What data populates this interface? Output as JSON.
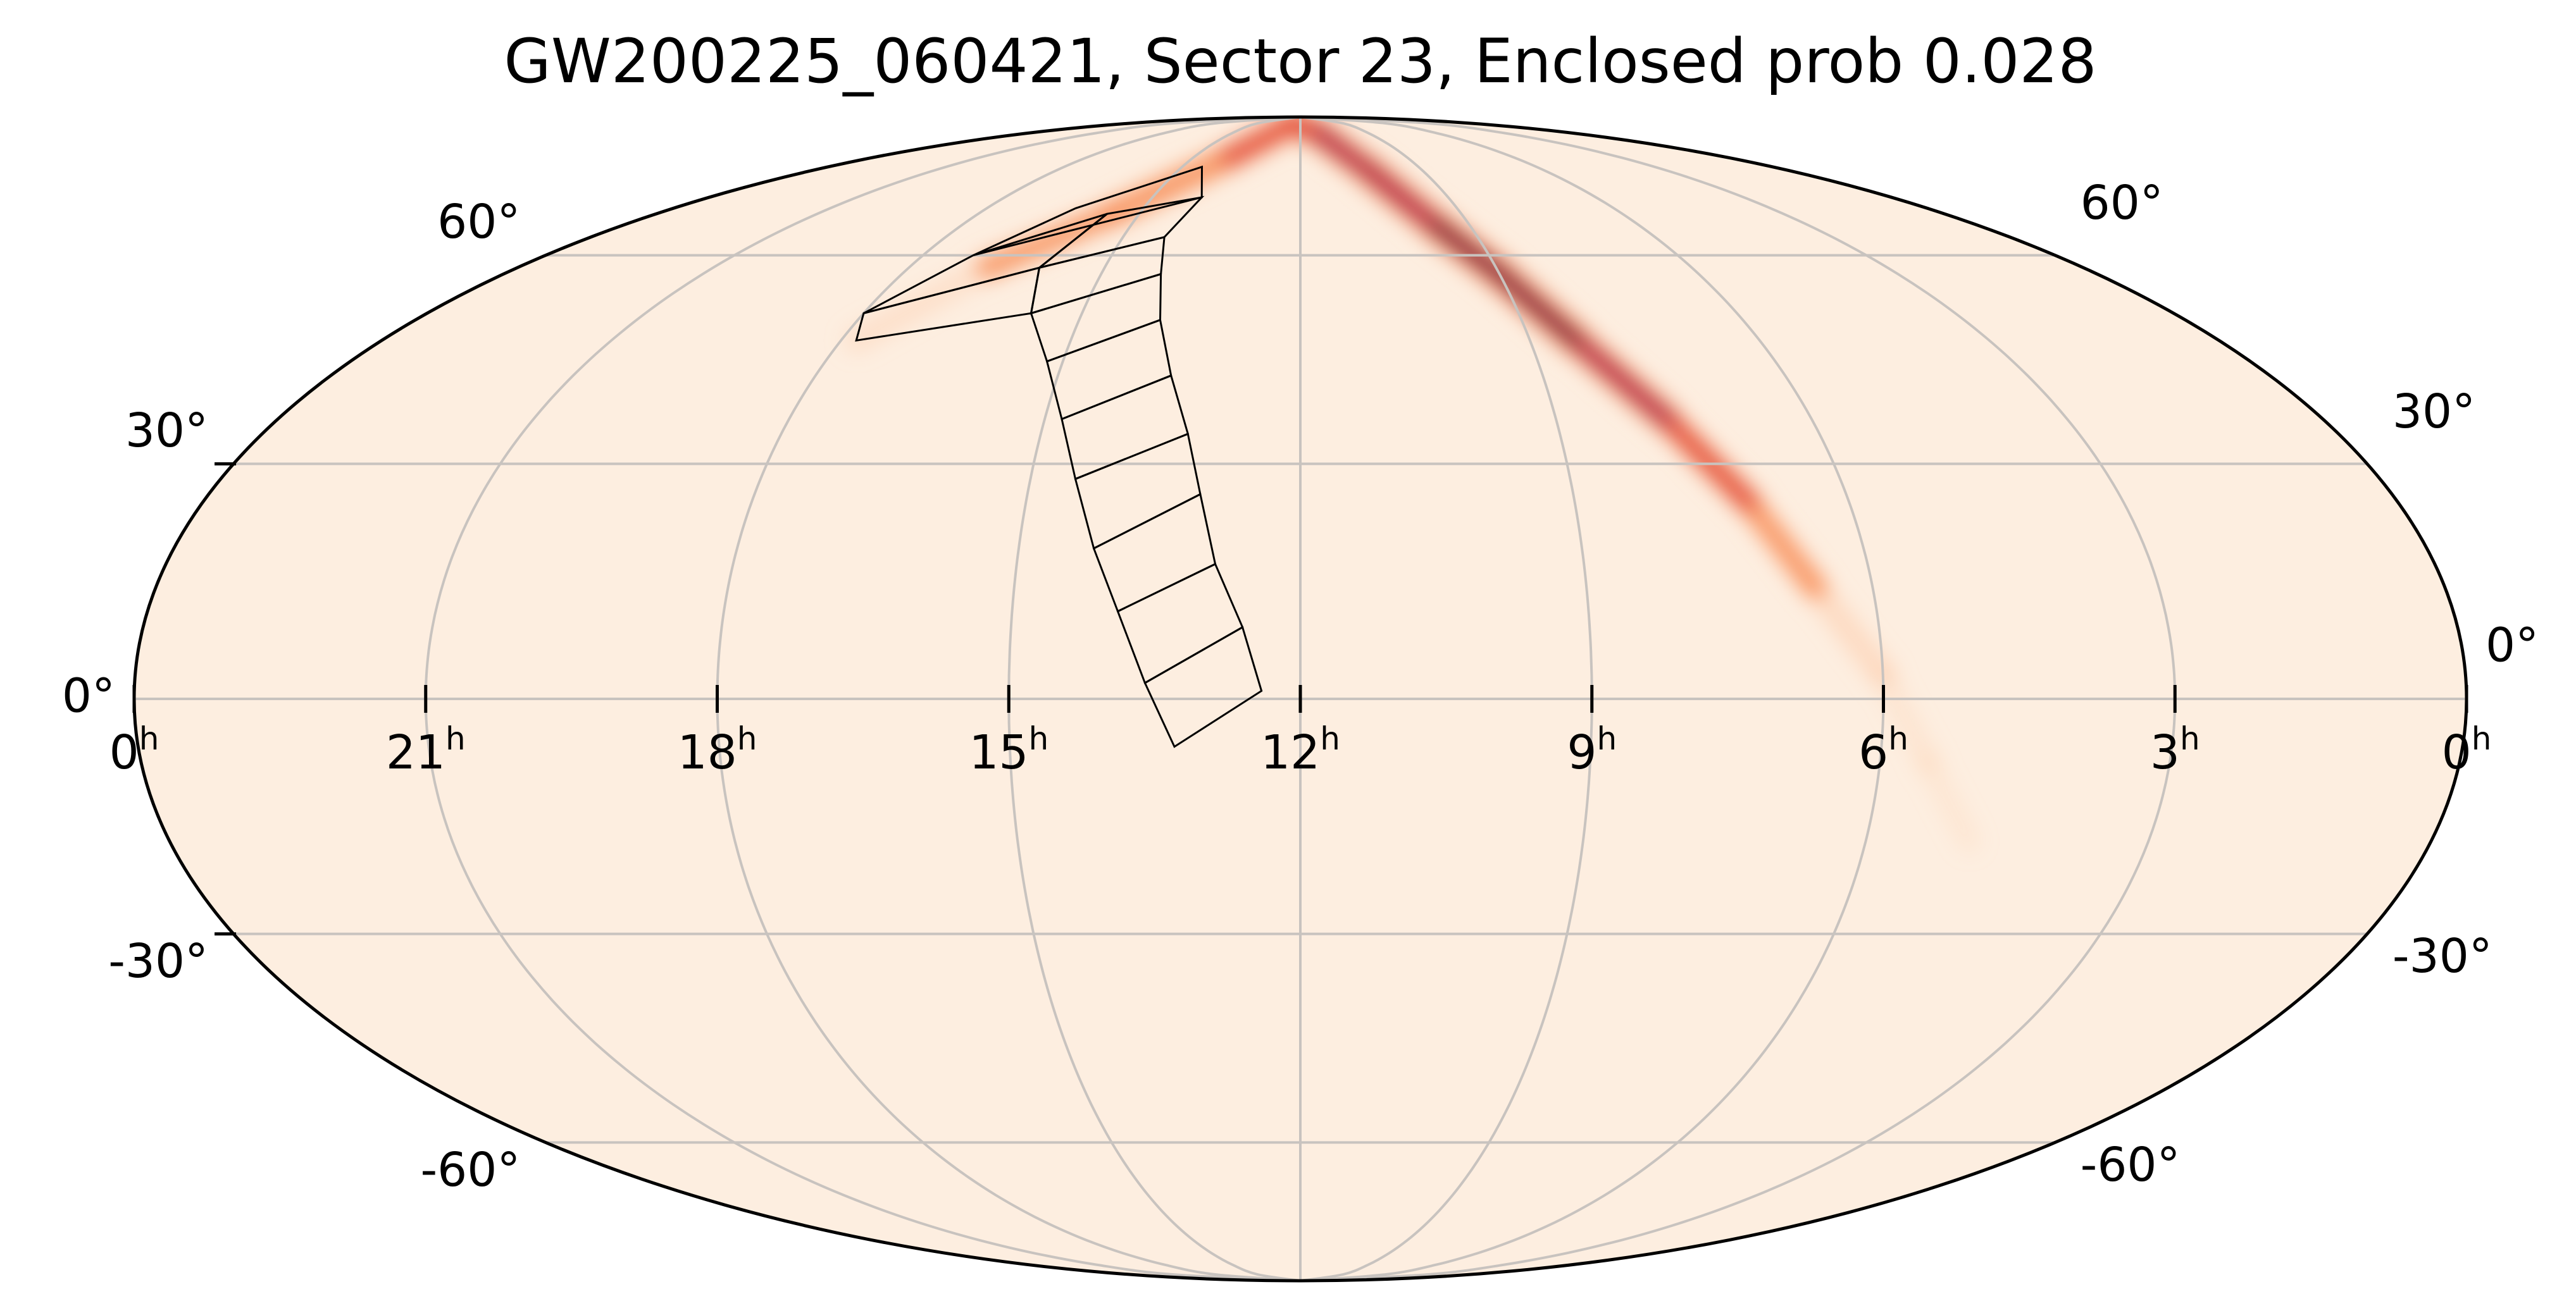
{
  "map": {
    "title": "GW200225_060421, Sector 23, Enclosed prob 0.028",
    "projection": "mollweide",
    "ra_axis_direction": "increasing-left",
    "colors": {
      "background": "#fdeee0",
      "grid": "#c8c3bf",
      "outline": "#000000",
      "tiles": "#000000",
      "colormap": [
        "#fdeee0",
        "#fdc9a5",
        "#f8884f",
        "#e0352f",
        "#a8004f",
        "#3b0730"
      ]
    },
    "lat_labels_left": [
      {
        "deg": 60,
        "text": "60°"
      },
      {
        "deg": 30,
        "text": "30°"
      },
      {
        "deg": 0,
        "text": "0°"
      },
      {
        "deg": -30,
        "text": "-30°"
      },
      {
        "deg": -60,
        "text": "-60°"
      }
    ],
    "lat_labels_right": [
      {
        "deg": 60,
        "text": "60°"
      },
      {
        "deg": 30,
        "text": "30°"
      },
      {
        "deg": 0,
        "text": "0°"
      },
      {
        "deg": -30,
        "text": "-30°"
      },
      {
        "deg": -60,
        "text": "-60°"
      }
    ],
    "ra_labels": [
      {
        "hours": 24,
        "num": "0",
        "unit": "h"
      },
      {
        "hours": 21,
        "num": "21",
        "unit": "h"
      },
      {
        "hours": 18,
        "num": "18",
        "unit": "h"
      },
      {
        "hours": 15,
        "num": "15",
        "unit": "h"
      },
      {
        "hours": 12,
        "num": "12",
        "unit": "h"
      },
      {
        "hours": 9,
        "num": "9",
        "unit": "h"
      },
      {
        "hours": 6,
        "num": "6",
        "unit": "h"
      },
      {
        "hours": 3,
        "num": "3",
        "unit": "h"
      },
      {
        "hours": 0,
        "num": "0",
        "unit": "h"
      }
    ],
    "probability_band": {
      "path": [
        {
          "ra_h": 17.8,
          "dec": 47
        },
        {
          "ra_h": 16.8,
          "dec": 58
        },
        {
          "ra_h": 15.5,
          "dec": 67
        },
        {
          "ra_h": 14.0,
          "dec": 78
        },
        {
          "ra_h": 12.5,
          "dec": 87
        },
        {
          "ra_h": 11.2,
          "dec": 84
        },
        {
          "ra_h": 10.3,
          "dec": 75
        },
        {
          "ra_h": 9.6,
          "dec": 65
        },
        {
          "ra_h": 9.0,
          "dec": 57
        },
        {
          "ra_h": 8.4,
          "dec": 47
        },
        {
          "ra_h": 7.7,
          "dec": 36
        },
        {
          "ra_h": 7.1,
          "dec": 25
        },
        {
          "ra_h": 6.6,
          "dec": 14
        },
        {
          "ra_h": 6.0,
          "dec": 3
        },
        {
          "ra_h": 5.5,
          "dec": -8
        },
        {
          "ra_h": 4.9,
          "dec": -18
        }
      ],
      "intensity": [
        0.18,
        0.28,
        0.42,
        0.5,
        0.62,
        0.72,
        0.82,
        0.92,
        1.0,
        0.92,
        0.72,
        0.5,
        0.34,
        0.24,
        0.12,
        0.05
      ]
    },
    "tiles": [
      [
        {
          "ra_h": 17.2,
          "dec": 60
        },
        {
          "ra_h": 16.3,
          "dec": 68
        },
        {
          "ra_h": 14.5,
          "dec": 76
        },
        {
          "ra_h": 14.0,
          "dec": 70
        }
      ],
      [
        {
          "ra_h": 18.0,
          "dec": 51
        },
        {
          "ra_h": 17.2,
          "dec": 60
        },
        {
          "ra_h": 15.6,
          "dec": 67
        },
        {
          "ra_h": 16.0,
          "dec": 58
        }
      ],
      [
        {
          "ra_h": 16.0,
          "dec": 58
        },
        {
          "ra_h": 15.6,
          "dec": 67
        },
        {
          "ra_h": 14.0,
          "dec": 70
        },
        {
          "ra_h": 14.3,
          "dec": 63
        }
      ],
      [
        {
          "ra_h": 18.0,
          "dec": 51
        },
        {
          "ra_h": 16.0,
          "dec": 58
        },
        {
          "ra_h": 15.7,
          "dec": 51
        },
        {
          "ra_h": 17.8,
          "dec": 47
        }
      ],
      [
        {
          "ra_h": 16.0,
          "dec": 58
        },
        {
          "ra_h": 14.3,
          "dec": 63
        },
        {
          "ra_h": 14.1,
          "dec": 57
        },
        {
          "ra_h": 15.7,
          "dec": 51
        }
      ],
      [
        {
          "ra_h": 15.7,
          "dec": 51
        },
        {
          "ra_h": 14.1,
          "dec": 57
        },
        {
          "ra_h": 13.9,
          "dec": 50
        },
        {
          "ra_h": 15.2,
          "dec": 44
        }
      ],
      [
        {
          "ra_h": 15.2,
          "dec": 44
        },
        {
          "ra_h": 13.9,
          "dec": 50
        },
        {
          "ra_h": 13.6,
          "dec": 42
        },
        {
          "ra_h": 14.8,
          "dec": 36
        }
      ],
      [
        {
          "ra_h": 14.8,
          "dec": 36
        },
        {
          "ra_h": 13.6,
          "dec": 42
        },
        {
          "ra_h": 13.3,
          "dec": 34
        },
        {
          "ra_h": 14.5,
          "dec": 28
        }
      ],
      [
        {
          "ra_h": 14.5,
          "dec": 28
        },
        {
          "ra_h": 13.3,
          "dec": 34
        },
        {
          "ra_h": 13.1,
          "dec": 26
        },
        {
          "ra_h": 14.2,
          "dec": 19
        }
      ],
      [
        {
          "ra_h": 14.2,
          "dec": 19
        },
        {
          "ra_h": 13.1,
          "dec": 26
        },
        {
          "ra_h": 12.9,
          "dec": 17
        },
        {
          "ra_h": 13.9,
          "dec": 11
        }
      ],
      [
        {
          "ra_h": 13.9,
          "dec": 11
        },
        {
          "ra_h": 12.9,
          "dec": 17
        },
        {
          "ra_h": 12.6,
          "dec": 9
        },
        {
          "ra_h": 13.6,
          "dec": 2
        }
      ],
      [
        {
          "ra_h": 13.6,
          "dec": 2
        },
        {
          "ra_h": 12.6,
          "dec": 9
        },
        {
          "ra_h": 12.4,
          "dec": 1
        },
        {
          "ra_h": 13.3,
          "dec": -6
        }
      ]
    ]
  }
}
